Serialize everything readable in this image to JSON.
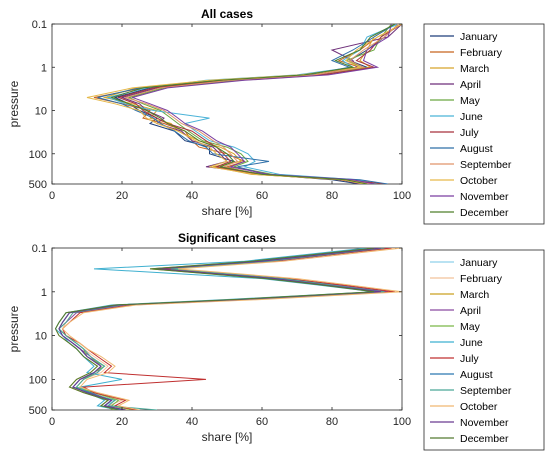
{
  "chart_data": [
    {
      "type": "line",
      "title": "All cases",
      "xlabel": "share [%]",
      "ylabel": "pressure",
      "xlim": [
        0,
        100
      ],
      "xticks": [
        "0",
        "20",
        "40",
        "60",
        "80",
        "100"
      ],
      "yscale": "log",
      "yreverse": true,
      "ylim": [
        0.1,
        500
      ],
      "yticks": [
        {
          "value": 0.1,
          "label": "0.1"
        },
        {
          "value": 1,
          "label": "1"
        },
        {
          "value": 10,
          "label": "10"
        },
        {
          "value": 100,
          "label": "100"
        },
        {
          "value": 500,
          "label": "500"
        }
      ],
      "y": [
        0.1,
        0.2,
        0.4,
        0.7,
        1,
        1.5,
        2,
        3,
        5,
        7,
        10,
        15,
        20,
        30,
        50,
        70,
        100,
        150,
        200,
        300,
        400,
        500
      ],
      "legend_position": "right",
      "series": [
        {
          "name": "January",
          "color": "#1f3f7a",
          "values": [
            99,
            95,
            90,
            85,
            90,
            75,
            50,
            28,
            18,
            22,
            25,
            30,
            28,
            35,
            38,
            45,
            45,
            52,
            48,
            60,
            80,
            88
          ]
        },
        {
          "name": "February",
          "color": "#c8651f",
          "values": [
            100,
            93,
            88,
            82,
            88,
            72,
            48,
            26,
            12,
            20,
            28,
            26,
            32,
            38,
            40,
            42,
            50,
            55,
            50,
            58,
            82,
            90
          ]
        },
        {
          "name": "March",
          "color": "#d8a52a",
          "values": [
            98,
            92,
            90,
            88,
            91,
            74,
            46,
            24,
            15,
            23,
            30,
            28,
            34,
            36,
            42,
            48,
            52,
            54,
            46,
            57,
            85,
            92
          ]
        },
        {
          "name": "April",
          "color": "#6e2f7a",
          "values": [
            100,
            96,
            80,
            86,
            87,
            76,
            52,
            30,
            20,
            25,
            27,
            32,
            30,
            37,
            40,
            46,
            48,
            50,
            44,
            62,
            83,
            88
          ]
        },
        {
          "name": "May",
          "color": "#6aa840",
          "values": [
            97,
            94,
            92,
            84,
            89,
            78,
            54,
            32,
            22,
            26,
            31,
            34,
            36,
            39,
            43,
            50,
            54,
            56,
            52,
            63,
            86,
            94
          ]
        },
        {
          "name": "June",
          "color": "#4bb3d8",
          "values": [
            99,
            90,
            88,
            83,
            86,
            70,
            44,
            27,
            16,
            21,
            29,
            45,
            38,
            41,
            45,
            52,
            56,
            58,
            55,
            65,
            87,
            93
          ]
        },
        {
          "name": "July",
          "color": "#a8323c",
          "values": [
            100,
            94,
            91,
            87,
            92,
            77,
            50,
            29,
            19,
            24,
            26,
            30,
            33,
            40,
            44,
            47,
            49,
            51,
            47,
            59,
            84,
            95
          ]
        },
        {
          "name": "August",
          "color": "#2f6fa8",
          "values": [
            98,
            92,
            86,
            80,
            85,
            73,
            47,
            25,
            13,
            20,
            24,
            29,
            31,
            35,
            39,
            44,
            46,
            62,
            53,
            61,
            88,
            96
          ]
        },
        {
          "name": "September",
          "color": "#e0946a",
          "values": [
            99,
            95,
            89,
            85,
            89,
            75,
            51,
            31,
            21,
            27,
            32,
            35,
            37,
            42,
            46,
            49,
            51,
            53,
            49,
            60,
            85,
            91
          ]
        },
        {
          "name": "October",
          "color": "#e6b94a",
          "values": [
            100,
            93,
            87,
            84,
            88,
            71,
            45,
            23,
            10,
            18,
            25,
            27,
            30,
            36,
            41,
            45,
            47,
            50,
            45,
            58,
            83,
            89
          ]
        },
        {
          "name": "November",
          "color": "#7b3fa0",
          "values": [
            97,
            96,
            90,
            89,
            93,
            79,
            55,
            33,
            23,
            28,
            33,
            36,
            38,
            43,
            47,
            51,
            53,
            55,
            51,
            62,
            86,
            92
          ]
        },
        {
          "name": "December",
          "color": "#4f7f2a",
          "values": [
            98,
            91,
            88,
            81,
            86,
            72,
            48,
            26,
            17,
            22,
            27,
            31,
            33,
            38,
            42,
            47,
            50,
            52,
            48,
            60,
            84,
            90
          ]
        }
      ]
    },
    {
      "type": "line",
      "title": "Significant cases",
      "xlabel": "share [%]",
      "ylabel": "pressure",
      "xlim": [
        0,
        100
      ],
      "xticks": [
        "0",
        "20",
        "40",
        "60",
        "80",
        "100"
      ],
      "yscale": "log",
      "yreverse": true,
      "ylim": [
        0.1,
        500
      ],
      "yticks": [
        {
          "value": 0.1,
          "label": "0.1"
        },
        {
          "value": 1,
          "label": "1"
        },
        {
          "value": 10,
          "label": "10"
        },
        {
          "value": 100,
          "label": "100"
        },
        {
          "value": 500,
          "label": "500"
        }
      ],
      "y": [
        0.1,
        0.2,
        0.3,
        0.5,
        0.7,
        1,
        1.5,
        2,
        3,
        5,
        7,
        10,
        15,
        20,
        30,
        50,
        70,
        100,
        150,
        200,
        300,
        400,
        500
      ],
      "legend_position": "right",
      "series": [
        {
          "name": "January",
          "color": "#8fd0ea",
          "values": [
            95,
            60,
            30,
            65,
            80,
            95,
            55,
            20,
            5,
            3,
            2,
            3,
            6,
            8,
            10,
            15,
            12,
            8,
            6,
            10,
            18,
            15,
            20
          ]
        },
        {
          "name": "February",
          "color": "#f2c29a",
          "values": [
            98,
            62,
            35,
            68,
            82,
            97,
            58,
            22,
            6,
            4,
            3,
            4,
            7,
            9,
            12,
            16,
            14,
            9,
            7,
            11,
            20,
            16,
            22
          ]
        },
        {
          "name": "March",
          "color": "#c9a020",
          "values": [
            92,
            58,
            28,
            62,
            78,
            93,
            52,
            18,
            4,
            2,
            1,
            2,
            5,
            7,
            9,
            13,
            11,
            7,
            5,
            9,
            16,
            14,
            18
          ]
        },
        {
          "name": "April",
          "color": "#8a4aa0",
          "values": [
            96,
            64,
            32,
            66,
            81,
            96,
            56,
            21,
            7,
            4,
            2,
            3,
            6,
            8,
            11,
            14,
            13,
            8,
            6,
            10,
            17,
            15,
            21
          ]
        },
        {
          "name": "May",
          "color": "#7ab648",
          "values": [
            94,
            61,
            33,
            64,
            79,
            94,
            54,
            19,
            5,
            3,
            2,
            4,
            7,
            9,
            10,
            15,
            12,
            9,
            7,
            12,
            19,
            17,
            23
          ]
        },
        {
          "name": "June",
          "color": "#3fb0d0",
          "values": [
            90,
            55,
            12,
            60,
            76,
            92,
            50,
            17,
            4,
            2,
            1,
            3,
            5,
            7,
            9,
            12,
            10,
            20,
            8,
            10,
            15,
            13,
            19
          ]
        },
        {
          "name": "July",
          "color": "#c03030",
          "values": [
            97,
            63,
            31,
            67,
            83,
            98,
            57,
            23,
            8,
            5,
            3,
            4,
            8,
            10,
            13,
            17,
            15,
            44,
            9,
            12,
            21,
            18,
            24
          ]
        },
        {
          "name": "August",
          "color": "#2a78b0",
          "values": [
            93,
            59,
            29,
            63,
            77,
            93,
            53,
            18,
            5,
            3,
            2,
            3,
            6,
            8,
            10,
            14,
            12,
            8,
            6,
            11,
            17,
            15,
            20
          ]
        },
        {
          "name": "September",
          "color": "#4aa898",
          "values": [
            95,
            62,
            34,
            66,
            80,
            95,
            55,
            20,
            6,
            4,
            2,
            4,
            7,
            9,
            11,
            15,
            13,
            9,
            7,
            10,
            18,
            16,
            30
          ]
        },
        {
          "name": "October",
          "color": "#f0b870",
          "values": [
            100,
            66,
            36,
            70,
            85,
            100,
            60,
            24,
            9,
            5,
            3,
            5,
            8,
            10,
            14,
            18,
            16,
            10,
            8,
            13,
            22,
            19,
            25
          ]
        },
        {
          "name": "November",
          "color": "#6a3a90",
          "values": [
            94,
            60,
            30,
            64,
            78,
            94,
            54,
            19,
            5,
            3,
            2,
            3,
            6,
            8,
            10,
            14,
            12,
            8,
            6,
            10,
            17,
            15,
            21
          ]
        },
        {
          "name": "December",
          "color": "#557a30",
          "values": [
            92,
            57,
            28,
            61,
            77,
            92,
            52,
            18,
            4,
            2,
            1,
            2,
            5,
            7,
            9,
            13,
            11,
            7,
            5,
            9,
            16,
            14,
            19
          ]
        }
      ]
    }
  ]
}
